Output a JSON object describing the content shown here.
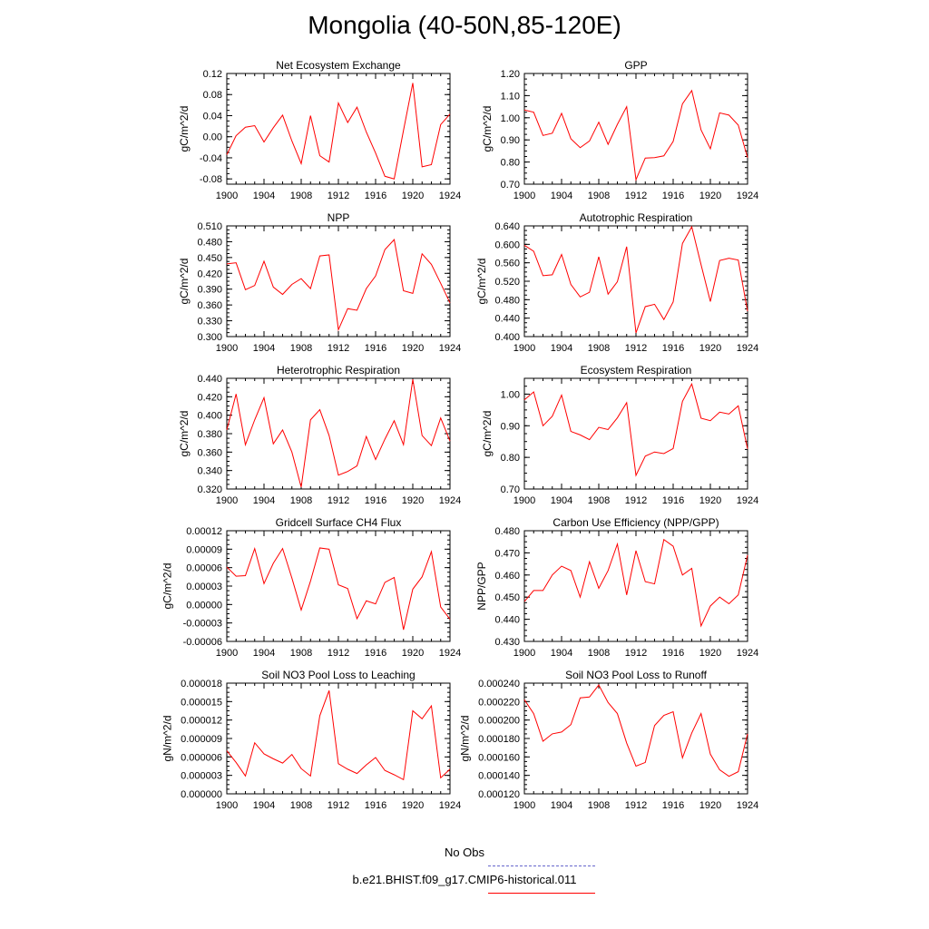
{
  "figure": {
    "title": "Mongolia (40-50N,85-120E)"
  },
  "chart_data": [
    {
      "type": "line",
      "title": "Net Ecosystem Exchange",
      "ylabel": "gC/m^2/d",
      "xlim": [
        1900,
        1924
      ],
      "xticks": [
        1900,
        1904,
        1908,
        1912,
        1916,
        1920,
        1924
      ],
      "ylim": [
        -0.09,
        0.12
      ],
      "yticks": [
        "-0.08",
        "-0.04",
        "0.00",
        "0.04",
        "0.08",
        "0.12"
      ],
      "x": [
        1900,
        1901,
        1902,
        1903,
        1904,
        1905,
        1906,
        1907,
        1908,
        1909,
        1910,
        1911,
        1912,
        1913,
        1914,
        1915,
        1916,
        1917,
        1918,
        1919,
        1920,
        1921,
        1922,
        1923,
        1924
      ],
      "series": [
        {
          "values": [
            -0.034,
            0.002,
            0.018,
            0.021,
            -0.01,
            0.017,
            0.041,
            -0.008,
            -0.051,
            0.04,
            -0.036,
            -0.048,
            0.064,
            0.027,
            0.056,
            0.009,
            -0.031,
            -0.075,
            -0.08,
            0.012,
            0.102,
            -0.057,
            -0.053,
            0.023,
            0.043
          ]
        }
      ]
    },
    {
      "type": "line",
      "title": "GPP",
      "ylabel": "gC/m^2/d",
      "xlim": [
        1900,
        1924
      ],
      "xticks": [
        1900,
        1904,
        1908,
        1912,
        1916,
        1920,
        1924
      ],
      "ylim": [
        0.7,
        1.2
      ],
      "yticks": [
        "0.70",
        "0.80",
        "0.90",
        "1.00",
        "1.10",
        "1.20"
      ],
      "x": [
        1900,
        1901,
        1902,
        1903,
        1904,
        1905,
        1906,
        1907,
        1908,
        1909,
        1910,
        1911,
        1912,
        1913,
        1914,
        1915,
        1916,
        1917,
        1918,
        1919,
        1920,
        1921,
        1922,
        1923,
        1924
      ],
      "series": [
        {
          "values": [
            1.035,
            1.025,
            0.92,
            0.93,
            1.02,
            0.905,
            0.865,
            0.895,
            0.98,
            0.88,
            0.97,
            1.05,
            0.72,
            0.818,
            0.82,
            0.828,
            0.893,
            1.063,
            1.123,
            0.945,
            0.86,
            1.022,
            1.012,
            0.967,
            0.82
          ]
        }
      ]
    },
    {
      "type": "line",
      "title": "NPP",
      "ylabel": "gC/m^2/d",
      "xlim": [
        1900,
        1924
      ],
      "xticks": [
        1900,
        1904,
        1908,
        1912,
        1916,
        1920,
        1924
      ],
      "ylim": [
        0.3,
        0.51
      ],
      "yticks": [
        "0.300",
        "0.330",
        "0.360",
        "0.390",
        "0.420",
        "0.450",
        "0.480",
        "0.510"
      ],
      "x": [
        1900,
        1901,
        1902,
        1903,
        1904,
        1905,
        1906,
        1907,
        1908,
        1909,
        1910,
        1911,
        1912,
        1913,
        1914,
        1915,
        1916,
        1917,
        1918,
        1919,
        1920,
        1921,
        1922,
        1923,
        1924
      ],
      "series": [
        {
          "values": [
            0.438,
            0.44,
            0.389,
            0.397,
            0.443,
            0.394,
            0.38,
            0.399,
            0.41,
            0.391,
            0.453,
            0.455,
            0.313,
            0.353,
            0.35,
            0.391,
            0.415,
            0.465,
            0.484,
            0.387,
            0.382,
            0.457,
            0.437,
            0.401,
            0.364
          ]
        }
      ]
    },
    {
      "type": "line",
      "title": "Autotrophic Respiration",
      "ylabel": "gC/m^2/d",
      "xlim": [
        1900,
        1924
      ],
      "xticks": [
        1900,
        1904,
        1908,
        1912,
        1916,
        1920,
        1924
      ],
      "ylim": [
        0.4,
        0.64
      ],
      "yticks": [
        "0.400",
        "0.440",
        "0.480",
        "0.520",
        "0.560",
        "0.600",
        "0.640"
      ],
      "x": [
        1900,
        1901,
        1902,
        1903,
        1904,
        1905,
        1906,
        1907,
        1908,
        1909,
        1910,
        1911,
        1912,
        1913,
        1914,
        1915,
        1916,
        1917,
        1918,
        1919,
        1920,
        1921,
        1922,
        1923,
        1924
      ],
      "series": [
        {
          "values": [
            0.598,
            0.585,
            0.532,
            0.534,
            0.578,
            0.513,
            0.486,
            0.496,
            0.573,
            0.492,
            0.519,
            0.595,
            0.408,
            0.465,
            0.47,
            0.437,
            0.475,
            0.602,
            0.638,
            0.556,
            0.476,
            0.565,
            0.57,
            0.566,
            0.455
          ]
        }
      ]
    },
    {
      "type": "line",
      "title": "Heterotrophic Respiration",
      "ylabel": "gC/m^2/d",
      "xlim": [
        1900,
        1924
      ],
      "xticks": [
        1900,
        1904,
        1908,
        1912,
        1916,
        1920,
        1924
      ],
      "ylim": [
        0.32,
        0.44
      ],
      "yticks": [
        "0.320",
        "0.340",
        "0.360",
        "0.380",
        "0.400",
        "0.420",
        "0.440"
      ],
      "x": [
        1900,
        1901,
        1902,
        1903,
        1904,
        1905,
        1906,
        1907,
        1908,
        1909,
        1910,
        1911,
        1912,
        1913,
        1914,
        1915,
        1916,
        1917,
        1918,
        1919,
        1920,
        1921,
        1922,
        1923,
        1924
      ],
      "series": [
        {
          "values": [
            0.384,
            0.423,
            0.368,
            0.395,
            0.419,
            0.369,
            0.384,
            0.36,
            0.322,
            0.395,
            0.406,
            0.378,
            0.335,
            0.339,
            0.345,
            0.377,
            0.352,
            0.374,
            0.394,
            0.368,
            0.439,
            0.378,
            0.367,
            0.397,
            0.372
          ]
        }
      ]
    },
    {
      "type": "line",
      "title": "Ecosystem Respiration",
      "ylabel": "gC/m^2/d",
      "xlim": [
        1900,
        1924
      ],
      "xticks": [
        1900,
        1904,
        1908,
        1912,
        1916,
        1920,
        1924
      ],
      "ylim": [
        0.7,
        1.05
      ],
      "yticks": [
        "0.70",
        "0.80",
        "0.90",
        "1.00"
      ],
      "x": [
        1900,
        1901,
        1902,
        1903,
        1904,
        1905,
        1906,
        1907,
        1908,
        1909,
        1910,
        1911,
        1912,
        1913,
        1914,
        1915,
        1916,
        1917,
        1918,
        1919,
        1920,
        1921,
        1922,
        1923,
        1924
      ],
      "series": [
        {
          "values": [
            0.982,
            1.007,
            0.9,
            0.93,
            0.997,
            0.882,
            0.871,
            0.856,
            0.895,
            0.888,
            0.925,
            0.973,
            0.743,
            0.804,
            0.817,
            0.812,
            0.828,
            0.977,
            1.032,
            0.924,
            0.916,
            0.943,
            0.937,
            0.963,
            0.827
          ]
        }
      ]
    },
    {
      "type": "line",
      "title": "Gridcell Surface CH4 Flux",
      "ylabel": "gC/m^2/d",
      "xlim": [
        1900,
        1924
      ],
      "xticks": [
        1900,
        1904,
        1908,
        1912,
        1916,
        1920,
        1924
      ],
      "ylim": [
        -6e-05,
        0.00012
      ],
      "yticks": [
        "-0.00006",
        "-0.00003",
        "0.00000",
        "0.00003",
        "0.00006",
        "0.00009",
        "0.00012"
      ],
      "x": [
        1900,
        1901,
        1902,
        1903,
        1904,
        1905,
        1906,
        1907,
        1908,
        1909,
        1910,
        1911,
        1912,
        1913,
        1914,
        1915,
        1916,
        1917,
        1918,
        1919,
        1920,
        1921,
        1922,
        1923,
        1924
      ],
      "series": [
        {
          "values": [
            6.1e-05,
            4.6e-05,
            4.7e-05,
            9.1e-05,
            3.4e-05,
            6.7e-05,
            9.1e-05,
            4.3e-05,
            -9e-06,
            3.8e-05,
            9.2e-05,
            9e-05,
            3.2e-05,
            2.6e-05,
            -2.3e-05,
            6e-06,
            1e-06,
            3.6e-05,
            4.4e-05,
            -4.1e-05,
            2.5e-05,
            4.5e-05,
            8.6e-05,
            -4e-06,
            -2.4e-05
          ]
        }
      ]
    },
    {
      "type": "line",
      "title": "Carbon Use Efficiency (NPP/GPP)",
      "ylabel": "NPP/GPP",
      "xlim": [
        1900,
        1924
      ],
      "xticks": [
        1900,
        1904,
        1908,
        1912,
        1916,
        1920,
        1924
      ],
      "ylim": [
        0.43,
        0.48
      ],
      "yticks": [
        "0.430",
        "0.440",
        "0.450",
        "0.460",
        "0.470",
        "0.480"
      ],
      "x": [
        1900,
        1901,
        1902,
        1903,
        1904,
        1905,
        1906,
        1907,
        1908,
        1909,
        1910,
        1911,
        1912,
        1913,
        1914,
        1915,
        1916,
        1917,
        1918,
        1919,
        1920,
        1921,
        1922,
        1923,
        1924
      ],
      "series": [
        {
          "values": [
            0.448,
            0.453,
            0.453,
            0.46,
            0.464,
            0.462,
            0.45,
            0.466,
            0.454,
            0.462,
            0.474,
            0.451,
            0.471,
            0.457,
            0.456,
            0.476,
            0.473,
            0.46,
            0.463,
            0.437,
            0.446,
            0.45,
            0.447,
            0.451,
            0.469
          ]
        }
      ]
    },
    {
      "type": "line",
      "title": "Soil NO3 Pool Loss to Leaching",
      "ylabel": "gN/m^2/d",
      "xlim": [
        1900,
        1924
      ],
      "xticks": [
        1900,
        1904,
        1908,
        1912,
        1916,
        1920,
        1924
      ],
      "ylim": [
        0.0,
        1.8e-05
      ],
      "yticks": [
        "0.000000",
        "0.000003",
        "0.000006",
        "0.000009",
        "0.000012",
        "0.000015",
        "0.000018"
      ],
      "x": [
        1900,
        1901,
        1902,
        1903,
        1904,
        1905,
        1906,
        1907,
        1908,
        1909,
        1910,
        1911,
        1912,
        1913,
        1914,
        1915,
        1916,
        1917,
        1918,
        1919,
        1920,
        1921,
        1922,
        1923,
        1924
      ],
      "series": [
        {
          "values": [
            7e-06,
            5.1e-06,
            2.9e-06,
            8.3e-06,
            6.5e-06,
            5.7e-06,
            5e-06,
            6.4e-06,
            4.1e-06,
            2.9e-06,
            1.27e-05,
            1.68e-05,
            4.9e-06,
            4e-06,
            3.3e-06,
            4.7e-06,
            5.9e-06,
            3.8e-06,
            3.1e-06,
            2.3e-06,
            1.35e-05,
            1.22e-05,
            1.43e-05,
            2.6e-06,
            4e-06
          ]
        }
      ]
    },
    {
      "type": "line",
      "title": "Soil NO3 Pool Loss to Runoff",
      "ylabel": "gN/m^2/d",
      "xlim": [
        1900,
        1924
      ],
      "xticks": [
        1900,
        1904,
        1908,
        1912,
        1916,
        1920,
        1924
      ],
      "ylim": [
        0.00012,
        0.00024
      ],
      "yticks": [
        "0.000120",
        "0.000140",
        "0.000160",
        "0.000180",
        "0.000200",
        "0.000220",
        "0.000240"
      ],
      "x": [
        1900,
        1901,
        1902,
        1903,
        1904,
        1905,
        1906,
        1907,
        1908,
        1909,
        1910,
        1911,
        1912,
        1913,
        1914,
        1915,
        1916,
        1917,
        1918,
        1919,
        1920,
        1921,
        1922,
        1923,
        1924
      ],
      "series": [
        {
          "values": [
            0.000222,
            0.000207,
            0.000177,
            0.000185,
            0.000187,
            0.000195,
            0.000224,
            0.000225,
            0.000238,
            0.000219,
            0.000207,
            0.000175,
            0.00015,
            0.000154,
            0.000194,
            0.000205,
            0.000209,
            0.000159,
            0.000186,
            0.000207,
            0.000163,
            0.000146,
            0.000139,
            0.000144,
            0.000185
          ]
        }
      ]
    }
  ],
  "legend": {
    "entries": [
      {
        "label": "No Obs",
        "color": "#6666cc",
        "dash": "dashed"
      },
      {
        "label": "b.e21.BHIST.f09_g17.CMIP6-historical.011",
        "color": "#ff0000",
        "dash": "solid"
      }
    ]
  },
  "colors": {
    "series": "#ff0000",
    "axis": "#000000"
  }
}
